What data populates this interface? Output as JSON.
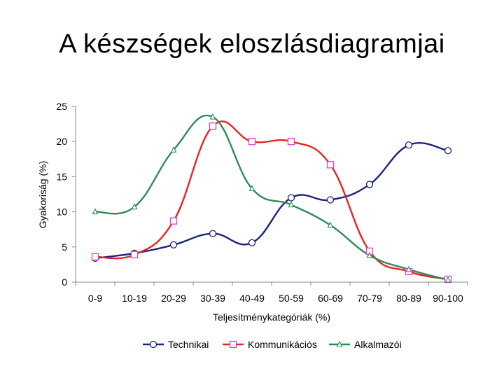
{
  "slide": {
    "title": "A készségek eloszlásdiagramjai"
  },
  "chart_data": {
    "type": "line",
    "xlabel": "Teljesítménykategóriák (%)",
    "ylabel": "Gyakoriság (%)",
    "ylim": [
      0,
      25
    ],
    "yticks": [
      0,
      5,
      10,
      15,
      20,
      25
    ],
    "categories": [
      "0-9",
      "10-19",
      "20-29",
      "30-39",
      "40-49",
      "50-59",
      "60-69",
      "70-79",
      "80-89",
      "90-100"
    ],
    "grid": false,
    "legend_position": "bottom",
    "series": [
      {
        "name": "Technikai",
        "color": "#1a237e",
        "marker": "circle",
        "values": [
          3.4,
          4.1,
          5.3,
          6.9,
          5.6,
          12.0,
          11.7,
          13.9,
          19.5,
          18.7
        ]
      },
      {
        "name": "Kommunikációs",
        "color": "#e8231f",
        "marker": "square",
        "values": [
          3.6,
          3.9,
          8.7,
          22.2,
          20.0,
          20.0,
          16.7,
          4.4,
          1.5,
          0.4
        ]
      },
      {
        "name": "Alkalmazói",
        "color": "#2e8b57",
        "marker": "triangle",
        "values": [
          10.0,
          10.7,
          18.8,
          23.5,
          13.3,
          11.0,
          8.1,
          3.8,
          1.8,
          0.3
        ]
      }
    ]
  }
}
